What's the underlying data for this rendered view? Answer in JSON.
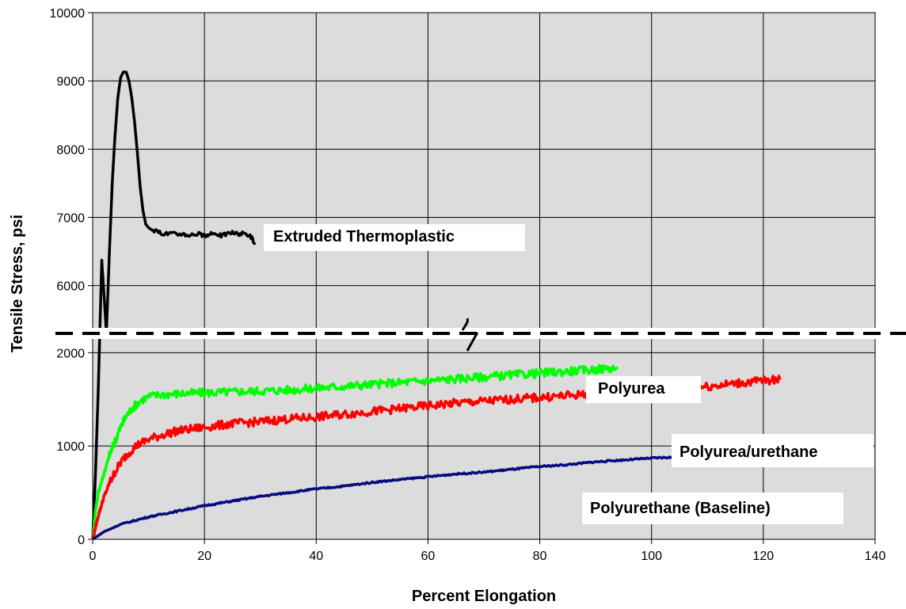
{
  "chart_data": {
    "type": "line",
    "title": "",
    "xlabel": "Percent Elongation",
    "ylabel": "Tensile Stress, psi",
    "xlim": [
      0,
      140
    ],
    "x_ticks": [
      "0",
      "20",
      "40",
      "60",
      "80",
      "100",
      "120",
      "140"
    ],
    "y_axis_broken": true,
    "y_lower_range": [
      0,
      3000
    ],
    "y_lower_ticks": [
      "0",
      "1000",
      "2000"
    ],
    "y_upper_range": [
      5300,
      10000
    ],
    "y_upper_ticks": [
      "6000",
      "7000",
      "8000",
      "9000",
      "10000"
    ],
    "grid": true,
    "plot_background": "#dcdcdc",
    "series": [
      {
        "name": "Extruded Thermoplastic",
        "color": "#000000",
        "x": [
          0,
          0.5,
          1.0,
          1.5,
          2.0,
          2.5,
          3.0,
          3.5,
          4.0,
          4.5,
          5.0,
          5.5,
          6.0,
          6.5,
          7.0,
          7.5,
          8.0,
          8.5,
          9.0,
          9.5,
          10.0,
          10.5,
          11.0,
          11.5,
          12,
          13,
          14,
          15,
          16,
          17,
          18,
          19,
          20,
          21,
          22,
          23,
          24,
          25,
          26,
          27,
          28,
          28.5,
          29
        ],
        "y": [
          0,
          700,
          1600,
          2700,
          4000,
          5400,
          6500,
          7500,
          8200,
          8750,
          9050,
          9130,
          9130,
          9000,
          8750,
          8400,
          7950,
          7450,
          7100,
          6900,
          6850,
          6820,
          6800,
          6790,
          6780,
          6760,
          6770,
          6750,
          6760,
          6740,
          6750,
          6760,
          6720,
          6750,
          6770,
          6730,
          6760,
          6780,
          6750,
          6770,
          6740,
          6700,
          6600
        ]
      },
      {
        "name": "Polyurea",
        "color": "#00ff00",
        "x": [
          0,
          0.5,
          1,
          2,
          3,
          4,
          5,
          6,
          7,
          8,
          9,
          10,
          12,
          15,
          20,
          25,
          30,
          35,
          40,
          45,
          50,
          55,
          60,
          65,
          70,
          75,
          80,
          85,
          90,
          94
        ],
        "y": [
          0,
          300,
          500,
          700,
          900,
          1050,
          1200,
          1320,
          1400,
          1460,
          1500,
          1530,
          1550,
          1560,
          1570,
          1580,
          1590,
          1600,
          1620,
          1640,
          1660,
          1680,
          1700,
          1720,
          1740,
          1760,
          1780,
          1800,
          1820,
          1840
        ]
      },
      {
        "name": "Polyurea/urethane",
        "color": "#ff0000",
        "x": [
          0,
          1,
          2,
          3,
          4,
          5,
          6,
          7,
          8,
          10,
          12,
          15,
          20,
          25,
          30,
          35,
          40,
          45,
          50,
          55,
          60,
          65,
          70,
          75,
          80,
          85,
          90,
          95,
          100,
          105,
          110,
          115,
          120,
          123
        ],
        "y": [
          0,
          250,
          450,
          600,
          720,
          820,
          900,
          960,
          1010,
          1070,
          1110,
          1160,
          1200,
          1240,
          1260,
          1290,
          1310,
          1340,
          1370,
          1400,
          1430,
          1460,
          1480,
          1500,
          1520,
          1540,
          1560,
          1580,
          1600,
          1620,
          1640,
          1670,
          1700,
          1710
        ]
      },
      {
        "name": "Polyurethane (Baseline)",
        "color": "#0a0a80",
        "x": [
          0,
          2,
          5,
          10,
          15,
          20,
          25,
          30,
          35,
          40,
          45,
          50,
          55,
          60,
          65,
          70,
          75,
          80,
          85,
          90,
          95,
          100,
          104
        ],
        "y": [
          0,
          80,
          160,
          240,
          300,
          360,
          410,
          460,
          500,
          540,
          570,
          610,
          640,
          670,
          700,
          720,
          750,
          780,
          800,
          830,
          850,
          870,
          880
        ]
      }
    ]
  }
}
